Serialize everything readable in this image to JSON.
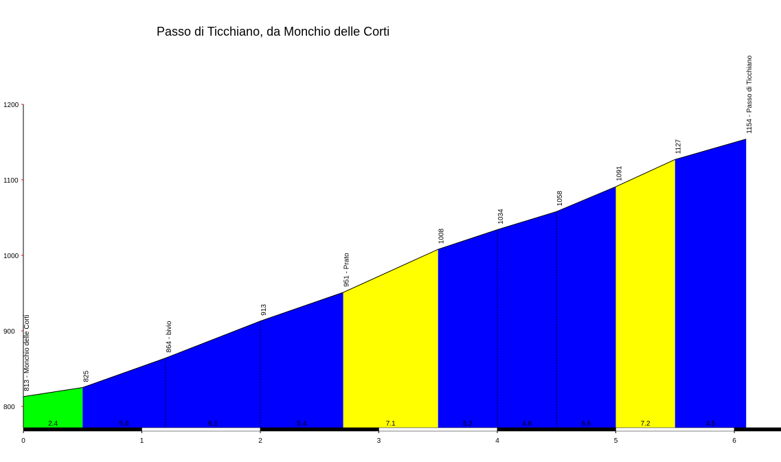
{
  "chart_data": {
    "type": "area",
    "title": "Passo di Ticchiano, da Monchio delle Corti",
    "xlabel": "",
    "ylabel": "",
    "xlim": [
      0,
      6.4
    ],
    "ylim": [
      770,
      1200
    ],
    "x_ticks": [
      0,
      1,
      2,
      3,
      4,
      5,
      6
    ],
    "y_ticks": [
      800,
      900,
      1000,
      1100,
      1200
    ],
    "grid": false,
    "profile": [
      {
        "x": 0.0,
        "y": 813
      },
      {
        "x": 0.5,
        "y": 825
      },
      {
        "x": 1.2,
        "y": 864
      },
      {
        "x": 2.0,
        "y": 913
      },
      {
        "x": 2.7,
        "y": 951
      },
      {
        "x": 3.5,
        "y": 1008
      },
      {
        "x": 4.0,
        "y": 1034
      },
      {
        "x": 4.5,
        "y": 1058
      },
      {
        "x": 5.0,
        "y": 1091
      },
      {
        "x": 5.5,
        "y": 1127
      },
      {
        "x": 6.1,
        "y": 1154
      }
    ],
    "point_labels": [
      {
        "x": 0.0,
        "y": 813,
        "text": "813 - Monchio delle Corti"
      },
      {
        "x": 0.5,
        "y": 825,
        "text": "825"
      },
      {
        "x": 1.2,
        "y": 864,
        "text": "864 - bivio"
      },
      {
        "x": 2.0,
        "y": 913,
        "text": "913"
      },
      {
        "x": 2.7,
        "y": 951,
        "text": "951 - Prato"
      },
      {
        "x": 3.5,
        "y": 1008,
        "text": "1008"
      },
      {
        "x": 4.0,
        "y": 1034,
        "text": "1034"
      },
      {
        "x": 4.5,
        "y": 1058,
        "text": "1058"
      },
      {
        "x": 5.0,
        "y": 1091,
        "text": "1091"
      },
      {
        "x": 5.5,
        "y": 1127,
        "text": "1127"
      },
      {
        "x": 6.1,
        "y": 1154,
        "text": "1154 - Passo di Ticchiano"
      }
    ],
    "segments": [
      {
        "x0": 0.0,
        "x1": 0.5,
        "grade": "2.4",
        "color": "#00ff00"
      },
      {
        "x0": 0.5,
        "x1": 2.7,
        "grade": "5.6",
        "color": "#0000ff",
        "grade_x": 0.85
      },
      {
        "x0": 0.5,
        "x1": 2.7,
        "grade": "6.1",
        "color": "#0000ff",
        "grade_x": 1.6,
        "label_only": true
      },
      {
        "x0": 0.5,
        "x1": 2.7,
        "grade": "5.4",
        "color": "#0000ff",
        "grade_x": 2.35,
        "label_only": true
      },
      {
        "x0": 2.7,
        "x1": 3.5,
        "grade": "7.1",
        "color": "#ffff00"
      },
      {
        "x0": 3.5,
        "x1": 5.0,
        "grade": "5.2",
        "color": "#0000ff",
        "grade_x": 3.75
      },
      {
        "x0": 3.5,
        "x1": 5.0,
        "grade": "4.8",
        "color": "#0000ff",
        "grade_x": 4.25,
        "label_only": true
      },
      {
        "x0": 3.5,
        "x1": 5.0,
        "grade": "6.6",
        "color": "#0000ff",
        "grade_x": 4.75,
        "label_only": true
      },
      {
        "x0": 5.0,
        "x1": 5.5,
        "grade": "7.2",
        "color": "#ffff00"
      },
      {
        "x0": 5.5,
        "x1": 6.1,
        "grade": "4.5",
        "color": "#0000ff"
      }
    ],
    "dashed_markers": [
      1.2,
      2.0,
      4.0,
      4.5
    ]
  }
}
